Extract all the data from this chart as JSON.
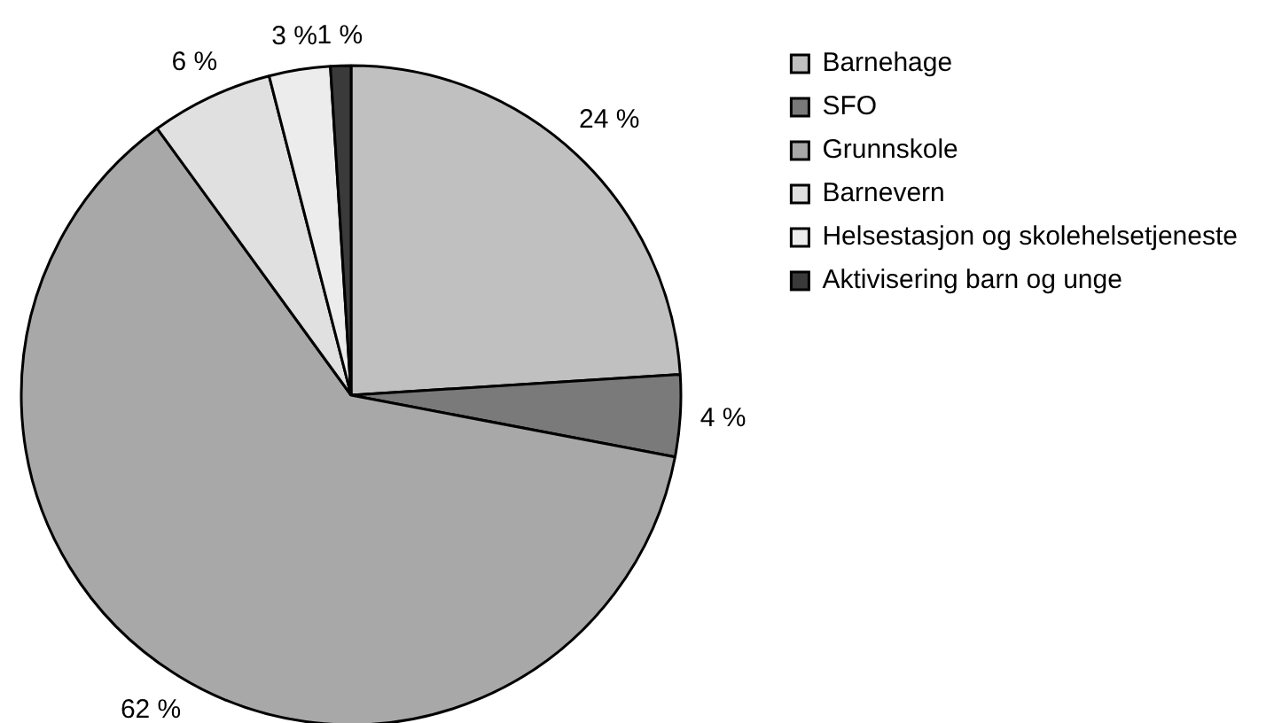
{
  "chart_data": {
    "type": "pie",
    "categories": [
      "Barnehage",
      "SFO",
      "Grunnskole",
      "Barnevern",
      "Helsestasjon og skolehelsetjeneste",
      "Aktivisering barn og unge"
    ],
    "values": [
      24,
      4,
      62,
      6,
      3,
      1
    ],
    "colors": [
      "#c0c0c0",
      "#7a7a7a",
      "#a8a8a8",
      "#e0e0e0",
      "#ececec",
      "#3a3a3a"
    ],
    "value_labels": [
      "24 %",
      "4 %",
      "62 %",
      "6 %",
      "3 %",
      "1 %"
    ],
    "legend": "top right"
  }
}
